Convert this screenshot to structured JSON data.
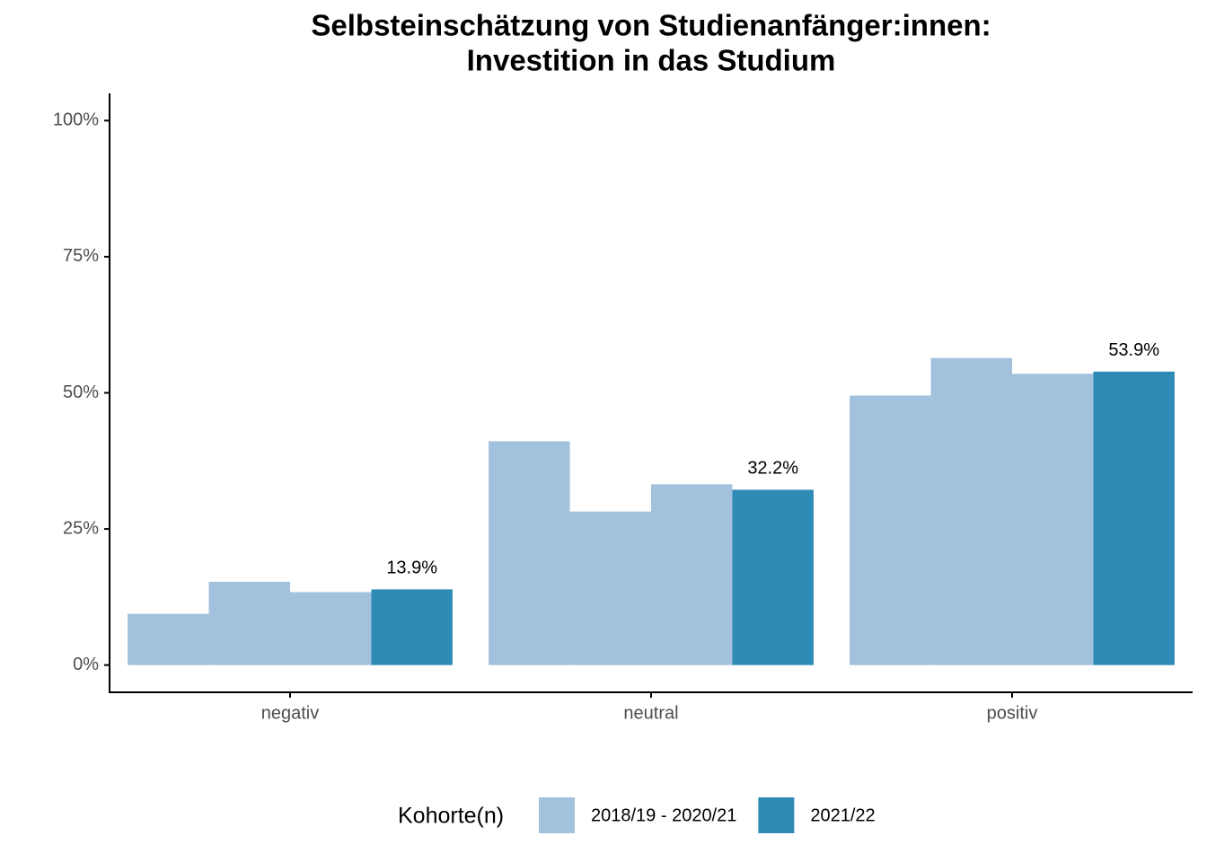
{
  "chart_data": {
    "type": "bar",
    "title": [
      "Selbsteinschätzung von Studienanfänger:innen:",
      "Investition in das Studium"
    ],
    "categories": [
      "negativ",
      "neutral",
      "positiv"
    ],
    "series": [
      {
        "name": "2018/19 - 2020/21",
        "color": "#a1c1dd",
        "values": [
          [
            9.4,
            15.3,
            13.4
          ],
          [
            41.1,
            28.2,
            33.2
          ],
          [
            49.5,
            56.4,
            53.5
          ]
        ]
      },
      {
        "name": "2021/22",
        "color": "#2e8bb6",
        "values": [
          13.9,
          32.2,
          53.9
        ],
        "value_labels": [
          "13.9%",
          "32.2%",
          "53.9%"
        ]
      }
    ],
    "legend_title": "Kohorte(n)",
    "legend": "bottom",
    "ylim": [
      -5,
      105
    ],
    "yticks": [
      {
        "value": 0,
        "label": "0%"
      },
      {
        "value": 25,
        "label": "25%"
      },
      {
        "value": 50,
        "label": "50%"
      },
      {
        "value": 75,
        "label": "75%"
      },
      {
        "value": 100,
        "label": "100%"
      }
    ],
    "grid": false
  }
}
